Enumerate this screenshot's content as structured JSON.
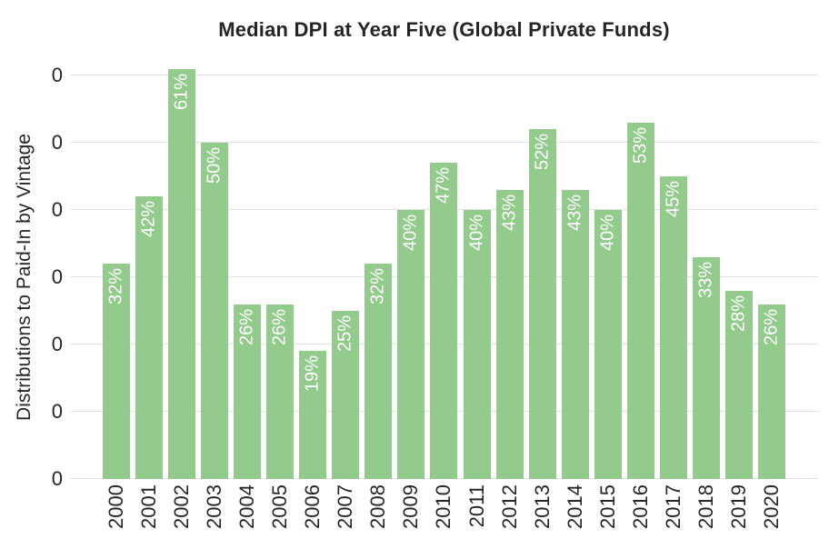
{
  "chart_data": {
    "type": "bar",
    "title": "Median DPI at Year Five (Global Private Funds)",
    "xlabel": "",
    "ylabel": "Distributions to Paid-In by Vintage",
    "categories": [
      "2000",
      "2001",
      "2002",
      "2003",
      "2004",
      "2005",
      "2006",
      "2007",
      "2008",
      "2009",
      "2010",
      "2011",
      "2012",
      "2013",
      "2014",
      "2015",
      "2016",
      "2017",
      "2018",
      "2019",
      "2020"
    ],
    "values": [
      32,
      42,
      61,
      50,
      26,
      26,
      19,
      25,
      32,
      40,
      47,
      40,
      43,
      52,
      43,
      40,
      53,
      45,
      33,
      28,
      26
    ],
    "bar_labels": [
      "32%",
      "42%",
      "61%",
      "50%",
      "26%",
      "26%",
      "19%",
      "25%",
      "32%",
      "40%",
      "47%",
      "40%",
      "43%",
      "52%",
      "43%",
      "40%",
      "53%",
      "45%",
      "33%",
      "28%",
      "26%"
    ],
    "y_tick_labels": [
      "0",
      "0",
      "0",
      "0",
      "0",
      "0",
      "0"
    ],
    "ylim": [
      0,
      0.62
    ],
    "grid": true,
    "legend": "none",
    "colors": {
      "bar": "#93cb8d",
      "bar_label": "#ffffff",
      "grid": "#e2e2e2",
      "text": "#262626",
      "background": "#ffffff"
    }
  }
}
